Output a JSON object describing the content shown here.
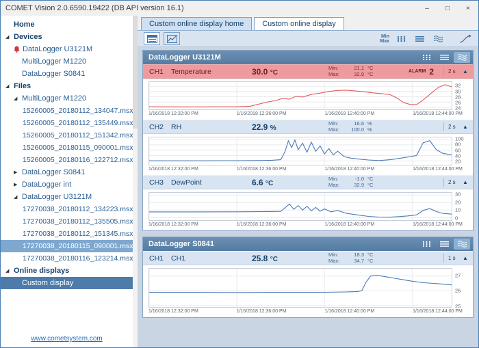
{
  "window": {
    "title": "COMET Vision 2.0.6590.19422 (DB API version 16.1)"
  },
  "icons": {
    "expanded": "◢",
    "collapsed": "▶",
    "collapse_channel": "▲",
    "minimize": "–",
    "maximize": "□",
    "close": "×"
  },
  "sidebar": {
    "link_label": "www.cometsystem.com",
    "items": [
      {
        "label": "Home",
        "type": "header"
      },
      {
        "label": "Devices",
        "type": "header",
        "state": "expanded"
      },
      {
        "label": "DataLogger U3121M",
        "type": "device",
        "alarm": true
      },
      {
        "label": "MultiLogger M1220",
        "type": "device"
      },
      {
        "label": "DataLogger S0841",
        "type": "device"
      },
      {
        "label": "Files",
        "type": "header",
        "state": "expanded"
      },
      {
        "label": "MultiLogger M1220",
        "type": "group",
        "state": "expanded"
      },
      {
        "label": "15260005_20180112_134047.msx",
        "type": "file"
      },
      {
        "label": "15260005_20180112_135449.msx",
        "type": "file"
      },
      {
        "label": "15260005_20180112_151342.msx",
        "type": "file"
      },
      {
        "label": "15260005_20180115_090001.msx",
        "type": "file"
      },
      {
        "label": "15260005_20180116_122712.msx",
        "type": "file"
      },
      {
        "label": "DataLogger S0841",
        "type": "group",
        "state": "collapsed"
      },
      {
        "label": "DataLogger int",
        "type": "group",
        "state": "collapsed"
      },
      {
        "label": "DataLogger U3121M",
        "type": "group",
        "state": "expanded"
      },
      {
        "label": "17270038_20180112_134223.msx",
        "type": "file"
      },
      {
        "label": "17270038_20180112_135505.msx",
        "type": "file"
      },
      {
        "label": "17270038_20180112_151345.msx",
        "type": "file"
      },
      {
        "label": "17270038_20180115_090001.msx",
        "type": "file",
        "selected": true
      },
      {
        "label": "17270038_20180116_123214.msx",
        "type": "file"
      },
      {
        "label": "Online displays",
        "type": "header",
        "state": "expanded"
      },
      {
        "label": "Custom display",
        "type": "display",
        "selected": true
      }
    ]
  },
  "tabs": {
    "items": [
      {
        "label": "Custom online display home",
        "active": false
      },
      {
        "label": "Custom online display",
        "active": true
      }
    ]
  },
  "toolbar": {
    "min_label": "Min",
    "max_label": "Max"
  },
  "panels": [
    {
      "title": "DataLogger U3121M",
      "channels": [
        {
          "id": "CH1",
          "name": "Temperature",
          "value": "30.0",
          "unit": "°C",
          "min_label": "Min:",
          "max_label": "Max:",
          "min_value": "21.1",
          "min_unit": "°C",
          "max_value": "32.9",
          "max_unit": "°C",
          "alarm_label": "ALARM",
          "alarm_count": "2",
          "interval": "2 s",
          "alarm": true,
          "chart": {
            "type": "line",
            "color": "#e05c5c",
            "xlim": [
              0,
              13.8
            ],
            "ylim": [
              23.2,
              33.6
            ],
            "xticks": [
              0,
              4,
              8,
              12
            ],
            "yticks": [
              24,
              26,
              28,
              30,
              32
            ],
            "xtick_labels": [
              "1/16/2018 12:32:00 PM",
              "1/16/2018 12:36:00 PM",
              "1/16/2018 12:40:00 PM",
              "1/16/2018 12:44:00 PM"
            ],
            "points": [
              [
                0,
                24.2
              ],
              [
                1,
                24.2
              ],
              [
                2,
                24.15
              ],
              [
                3,
                24.2
              ],
              [
                4,
                24.2
              ],
              [
                4.6,
                24.4
              ],
              [
                5,
                25.2
              ],
              [
                5.4,
                26.0
              ],
              [
                5.8,
                26.6
              ],
              [
                6.1,
                27.4
              ],
              [
                6.4,
                27.1
              ],
              [
                6.7,
                28.2
              ],
              [
                7,
                27.9
              ],
              [
                7.4,
                28.9
              ],
              [
                7.8,
                29.4
              ],
              [
                8.2,
                30.0
              ],
              [
                8.6,
                30.4
              ],
              [
                9,
                30.5
              ],
              [
                9.4,
                30.2
              ],
              [
                9.8,
                29.9
              ],
              [
                10.2,
                29.5
              ],
              [
                10.6,
                29.2
              ],
              [
                11,
                28.8
              ],
              [
                11.3,
                27.6
              ],
              [
                11.6,
                25.8
              ],
              [
                11.9,
                25.1
              ],
              [
                12.2,
                25.0
              ],
              [
                12.5,
                26.8
              ],
              [
                12.9,
                29.6
              ],
              [
                13.2,
                31.6
              ],
              [
                13.5,
                32.6
              ],
              [
                13.8,
                31.8
              ]
            ]
          }
        },
        {
          "id": "CH2",
          "name": "RH",
          "value": "22.9",
          "unit": "%",
          "min_label": "Min:",
          "max_label": "Max:",
          "min_value": "16.6",
          "min_unit": "%",
          "max_value": "100.0",
          "max_unit": "%",
          "interval": "2 s",
          "alarm": false,
          "chart": {
            "type": "line",
            "color": "#4a7ab5",
            "xlim": [
              0,
              13.8
            ],
            "ylim": [
              5,
              108
            ],
            "xticks": [
              0,
              4,
              8,
              12
            ],
            "yticks": [
              20,
              40,
              60,
              80,
              100
            ],
            "xtick_labels": [
              "1/16/2018 12:32:00 PM",
              "1/16/2018 12:36:00 PM",
              "1/16/2018 12:40:00 PM",
              "1/16/2018 12:44:00 PM"
            ],
            "points": [
              [
                0,
                20
              ],
              [
                2,
                20
              ],
              [
                4,
                20.5
              ],
              [
                5,
                21
              ],
              [
                5.6,
                22
              ],
              [
                6,
                24
              ],
              [
                6.2,
                55
              ],
              [
                6.35,
                95
              ],
              [
                6.5,
                70
              ],
              [
                6.65,
                98
              ],
              [
                6.8,
                62
              ],
              [
                7,
                86
              ],
              [
                7.2,
                52
              ],
              [
                7.4,
                90
              ],
              [
                7.6,
                56
              ],
              [
                7.8,
                76
              ],
              [
                8,
                46
              ],
              [
                8.2,
                66
              ],
              [
                8.4,
                42
              ],
              [
                8.6,
                56
              ],
              [
                8.9,
                36
              ],
              [
                9.2,
                30
              ],
              [
                9.6,
                26
              ],
              [
                10,
                23
              ],
              [
                10.5,
                21
              ],
              [
                11,
                24
              ],
              [
                11.4,
                29
              ],
              [
                11.8,
                34
              ],
              [
                12.2,
                40
              ],
              [
                12.5,
                88
              ],
              [
                12.8,
                96
              ],
              [
                13.1,
                62
              ],
              [
                13.4,
                48
              ],
              [
                13.8,
                42
              ]
            ]
          }
        },
        {
          "id": "CH3",
          "name": "DewPoint",
          "value": "6.6",
          "unit": "°C",
          "min_label": "Min:",
          "max_label": "Max:",
          "min_value": "-1.0",
          "min_unit": "°C",
          "max_value": "32.9",
          "max_unit": "°C",
          "interval": "2 s",
          "alarm": false,
          "chart": {
            "type": "line",
            "color": "#4a7ab5",
            "xlim": [
              0,
              13.8
            ],
            "ylim": [
              -3.5,
              33
            ],
            "xticks": [
              0,
              4,
              8,
              12
            ],
            "yticks": [
              0,
              10,
              20,
              30
            ],
            "xtick_labels": [
              "1/16/2018 12:32:00 PM",
              "1/16/2018 12:36:00 PM",
              "1/16/2018 12:40:00 PM",
              "1/16/2018 12:44:00 PM"
            ],
            "points": [
              [
                0,
                7.5
              ],
              [
                2,
                7.5
              ],
              [
                4,
                7.6
              ],
              [
                5,
                7.8
              ],
              [
                6,
                8.2
              ],
              [
                6.2,
                13
              ],
              [
                6.4,
                18
              ],
              [
                6.6,
                11
              ],
              [
                6.8,
                16
              ],
              [
                7,
                10
              ],
              [
                7.2,
                15
              ],
              [
                7.4,
                9
              ],
              [
                7.6,
                13.5
              ],
              [
                7.8,
                8.5
              ],
              [
                8,
                11.5
              ],
              [
                8.3,
                7.5
              ],
              [
                8.6,
                9.5
              ],
              [
                9,
                5.5
              ],
              [
                9.5,
                3.5
              ],
              [
                10,
                1.5
              ],
              [
                10.5,
                0.6
              ],
              [
                11,
                0.5
              ],
              [
                11.4,
                1.2
              ],
              [
                11.8,
                2.2
              ],
              [
                12.2,
                3.5
              ],
              [
                12.5,
                9.5
              ],
              [
                12.8,
                12
              ],
              [
                13.1,
                8
              ],
              [
                13.4,
                5.5
              ],
              [
                13.8,
                4.5
              ]
            ]
          }
        }
      ]
    },
    {
      "title": "DataLogger S0841",
      "channels": [
        {
          "id": "CH1",
          "name": "CH1",
          "value": "25.8",
          "unit": "°C",
          "min_label": "Min:",
          "max_label": "Max:",
          "min_value": "18.3",
          "min_unit": "°C",
          "max_value": "34.7",
          "max_unit": "°C",
          "interval": "1 s",
          "alarm": false,
          "chart": {
            "type": "line",
            "color": "#4a7ab5",
            "xlim": [
              0,
              13.8
            ],
            "ylim": [
              24.9,
              27.5
            ],
            "xticks": [
              0,
              4,
              8,
              12
            ],
            "yticks": [
              25,
              26,
              27
            ],
            "xtick_labels": [
              "1/16/2018 12:32:00 PM",
              "1/16/2018 12:36:00 PM",
              "1/16/2018 12:40:00 PM",
              "1/16/2018 12:44:00 PM"
            ],
            "points": [
              [
                0,
                25.9
              ],
              [
                2,
                25.9
              ],
              [
                4,
                25.88
              ],
              [
                6,
                25.9
              ],
              [
                8,
                25.9
              ],
              [
                9,
                25.92
              ],
              [
                9.5,
                25.95
              ],
              [
                9.7,
                26.0
              ],
              [
                9.9,
                26.6
              ],
              [
                10.1,
                27.0
              ],
              [
                10.4,
                27.05
              ],
              [
                10.8,
                26.95
              ],
              [
                11.2,
                26.85
              ],
              [
                11.6,
                26.75
              ],
              [
                12,
                26.65
              ],
              [
                12.5,
                26.55
              ],
              [
                13,
                26.5
              ],
              [
                13.4,
                26.45
              ],
              [
                13.8,
                26.4
              ]
            ]
          }
        }
      ]
    }
  ]
}
